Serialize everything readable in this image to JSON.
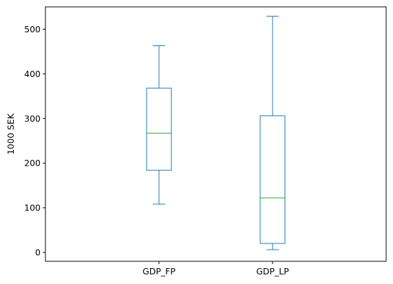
{
  "chart_data": {
    "type": "boxplot",
    "title": "",
    "xlabel": "",
    "ylabel": "1000 SEK",
    "ylim": [
      -20,
      550
    ],
    "yticks": [
      0,
      100,
      200,
      300,
      400,
      500
    ],
    "grid": false,
    "categories": [
      "GDP_FP",
      "GDP_LP"
    ],
    "boxes": [
      {
        "category": "GDP_FP",
        "whisker_low": 108,
        "q1": 184,
        "median": 267,
        "q3": 368,
        "whisker_high": 463
      },
      {
        "category": "GDP_LP",
        "whisker_low": 6,
        "q1": 20,
        "median": 122,
        "q3": 306,
        "whisker_high": 529
      }
    ],
    "colors": {
      "box": "#1f77b4",
      "median": "#2ca02c",
      "axis": "#000000"
    }
  }
}
